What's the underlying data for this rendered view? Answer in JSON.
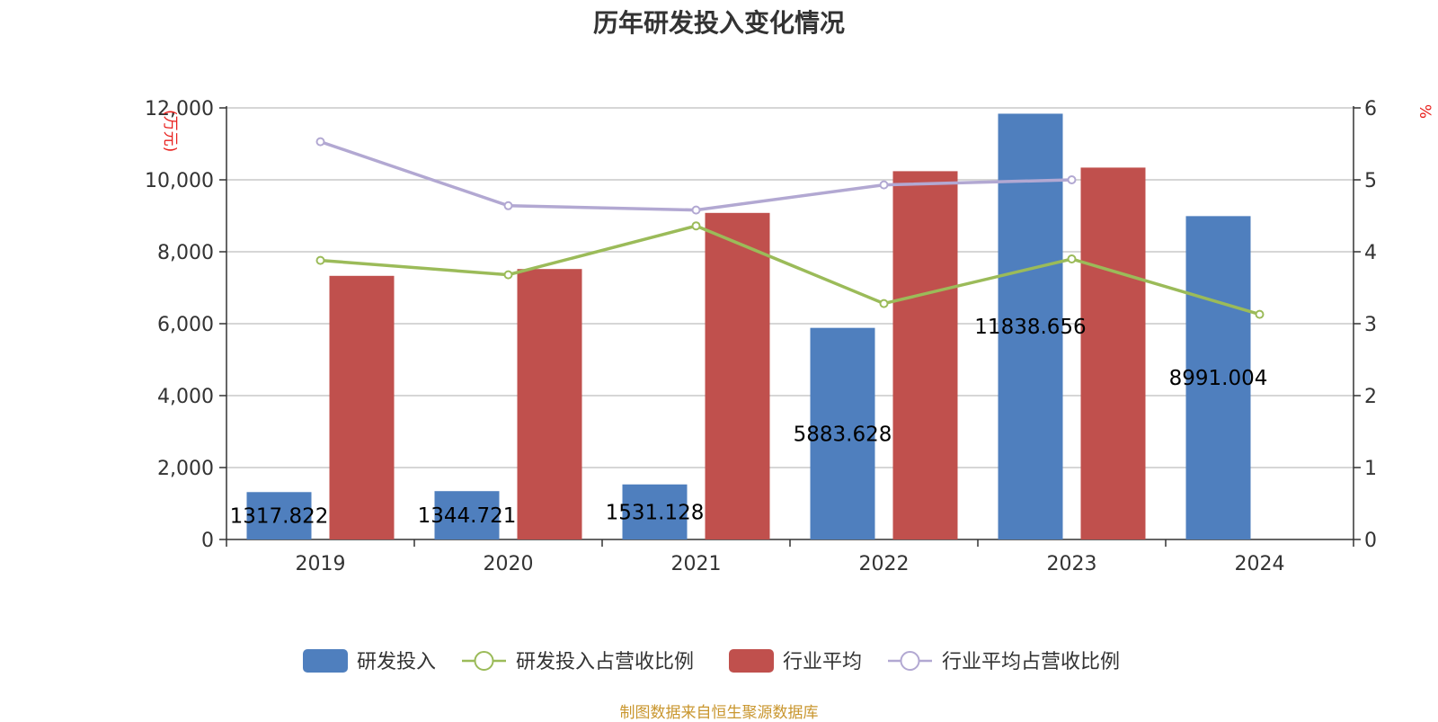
{
  "title": "历年研发投入变化情况",
  "source": "制图数据来自恒生聚源数据库",
  "colors": {
    "rd_bar": "#4f7fbe",
    "industry_bar": "#c0504d",
    "rd_ratio_line": "#9bbb59",
    "industry_ratio_line": "#b2a8d2",
    "axis_unit": "#e8201d",
    "source": "#c9962e"
  },
  "chart_data": {
    "type": "bar",
    "title": "历年研发投入变化情况",
    "categories": [
      "2019",
      "2020",
      "2021",
      "2022",
      "2023",
      "2024"
    ],
    "y_left": {
      "unit_label": "(万元)",
      "range": [
        0,
        12000
      ],
      "ticks": [
        0,
        2000,
        4000,
        6000,
        8000,
        10000,
        12000
      ],
      "tick_labels": [
        "0",
        "2,000",
        "4,000",
        "6,000",
        "8,000",
        "10,000",
        "12,000"
      ]
    },
    "y_right": {
      "unit_label": "%",
      "range": [
        0,
        6
      ],
      "ticks": [
        0,
        1,
        2,
        3,
        4,
        5,
        6
      ],
      "tick_labels": [
        "0",
        "1",
        "2",
        "3",
        "4",
        "5",
        "6"
      ]
    },
    "grid": true,
    "legend_position": "bottom",
    "series": [
      {
        "name": "研发投入",
        "type": "bar",
        "axis": "left",
        "values": [
          1317.822,
          1344.721,
          1531.128,
          5883.628,
          11838.656,
          8991.004
        ],
        "labels": [
          "1317.822",
          "1344.721",
          "1531.128",
          "5883.628",
          "11838.656",
          "8991.004"
        ]
      },
      {
        "name": "研发投入占营收比例",
        "type": "line",
        "axis": "right",
        "values": [
          3.88,
          3.68,
          4.36,
          3.28,
          3.9,
          3.13
        ]
      },
      {
        "name": "行业平均",
        "type": "bar",
        "axis": "left",
        "values": [
          7330,
          7520,
          9080,
          10240,
          10340,
          null
        ]
      },
      {
        "name": "行业平均占营收比例",
        "type": "line",
        "axis": "right",
        "values": [
          5.53,
          4.64,
          4.58,
          4.93,
          5.0,
          null
        ]
      }
    ]
  }
}
